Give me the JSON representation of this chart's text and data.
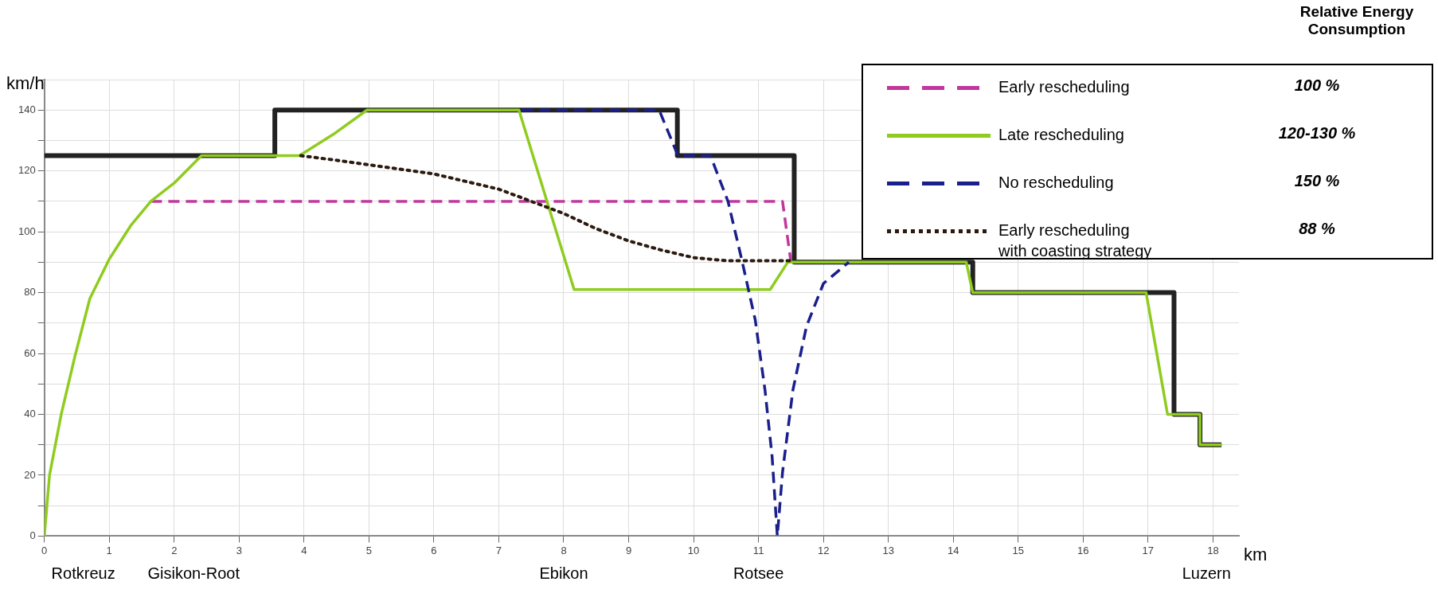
{
  "chart_data": {
    "type": "line",
    "xlabel": "km",
    "ylabel": "km/h",
    "legend_title": "Relative Energy Consumption",
    "xlim": [
      0,
      18.4
    ],
    "xticks": [
      0,
      1,
      2,
      3,
      4,
      5,
      6,
      7,
      8,
      9,
      10,
      11,
      12,
      13,
      14,
      15,
      16,
      17,
      18
    ],
    "ylim": [
      0,
      150
    ],
    "yticks": [
      0,
      {
        "value": 10,
        "label": null
      },
      20,
      {
        "value": 30,
        "label": null
      },
      40,
      {
        "value": 50,
        "label": null
      },
      60,
      {
        "value": 70,
        "label": null
      },
      80,
      {
        "value": 90,
        "label": null
      },
      100,
      {
        "value": 110,
        "label": null
      },
      120,
      {
        "value": 130,
        "label": null
      },
      140,
      {
        "value": 150,
        "label": null
      }
    ],
    "grid": true,
    "legend": "top right",
    "marker": "none",
    "series": [
      {
        "type": "step",
        "color": "#222222",
        "line_style": "solid",
        "x": [
          0,
          3.55,
          9.75,
          11.55,
          14.3,
          17.4,
          17.8,
          18.13
        ],
        "values": [
          125,
          140,
          125,
          90,
          80,
          40,
          30,
          30
        ]
      },
      {
        "name": "Early rescheduling",
        "color": "#c0389c",
        "line_style": "dashed",
        "x": [
          1.64,
          11.37,
          11.5
        ],
        "values": [
          110,
          110,
          90
        ]
      },
      {
        "name": "Late rescheduling",
        "color": "#8fcc1f",
        "line_style": "solid",
        "x": [
          0,
          0.08,
          0.26,
          0.47,
          0.7,
          1.0,
          1.33,
          1.64,
          2.0,
          2.42,
          3.93,
          4.45,
          4.97,
          7.31,
          8.16,
          11.18,
          11.45,
          14.2,
          14.3,
          16.97,
          17.3,
          17.8,
          17.8,
          18.14
        ],
        "values": [
          0,
          20,
          40,
          59,
          78,
          91,
          102,
          110,
          116,
          125,
          125,
          132,
          140,
          140,
          81,
          81,
          90,
          90,
          80,
          80,
          40,
          40,
          30,
          30
        ]
      },
      {
        "name": "No rescheduling",
        "color": "#1a1f8c",
        "line_style": "dashed",
        "x": [
          7.35,
          9.47,
          9.76,
          10.26,
          10.53,
          10.74,
          10.95,
          11.1,
          11.21,
          11.29,
          11.37,
          11.53,
          11.74,
          12.0,
          12.39
        ],
        "values": [
          140,
          140,
          125,
          125,
          110,
          91,
          71,
          48,
          26,
          0,
          21,
          48,
          69,
          83,
          90
        ]
      },
      {
        "name": "Early rescheduling\nwith coasting strategy",
        "color": "#2b1a10",
        "line_style": "dotted",
        "x": [
          3.95,
          4.5,
          5.0,
          5.5,
          6.0,
          6.5,
          7.0,
          7.5,
          8.0,
          8.5,
          9.0,
          9.5,
          10.0,
          10.5,
          11.5
        ],
        "values": [
          125,
          123.5,
          122,
          120.5,
          119,
          116.5,
          114,
          110,
          106,
          101,
          97,
          94,
          91.5,
          90.5,
          90.5
        ]
      }
    ],
    "annotations": [
      "100 %",
      "120-130 %",
      "150 %",
      "88 %",
      "Rotkreuz",
      "Gisikon-Root",
      "Ebikon",
      "Rotsee",
      "Luzern"
    ]
  }
}
